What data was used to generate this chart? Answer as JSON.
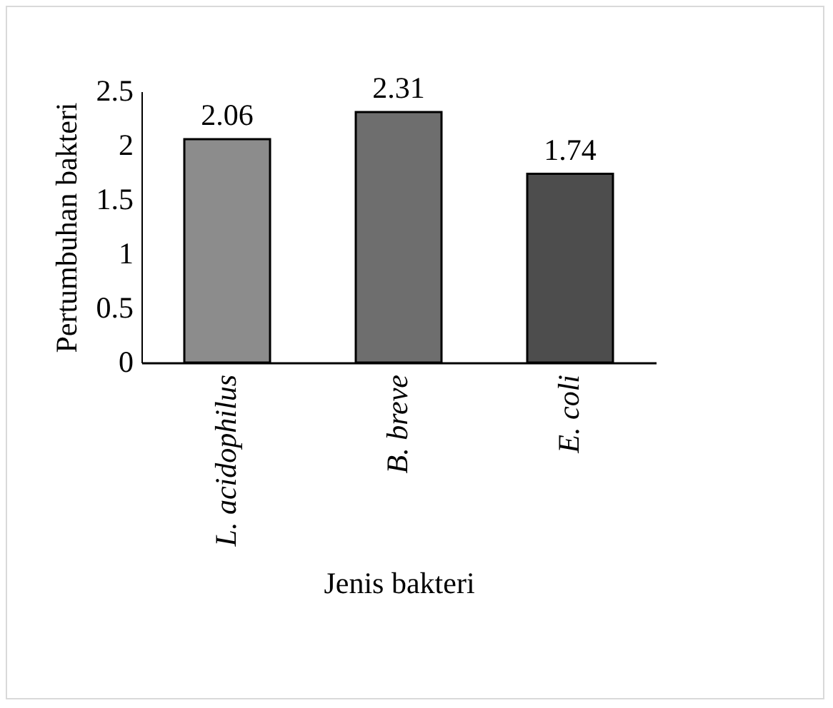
{
  "chart_data": {
    "type": "bar",
    "xlabel": "Jenis bakteri",
    "ylabel": "Pertumbuhan bakteri",
    "categories": [
      "L. acidophilus",
      "B. breve",
      "E. coli"
    ],
    "values": [
      2.06,
      2.31,
      1.74
    ],
    "colors": [
      "#8c8c8c",
      "#6e6e6e",
      "#4d4d4d"
    ],
    "ylim": [
      0,
      2.5
    ],
    "yticks": [
      0,
      0.5,
      1,
      1.5,
      2,
      2.5
    ],
    "grid": false,
    "data_labels": true
  }
}
